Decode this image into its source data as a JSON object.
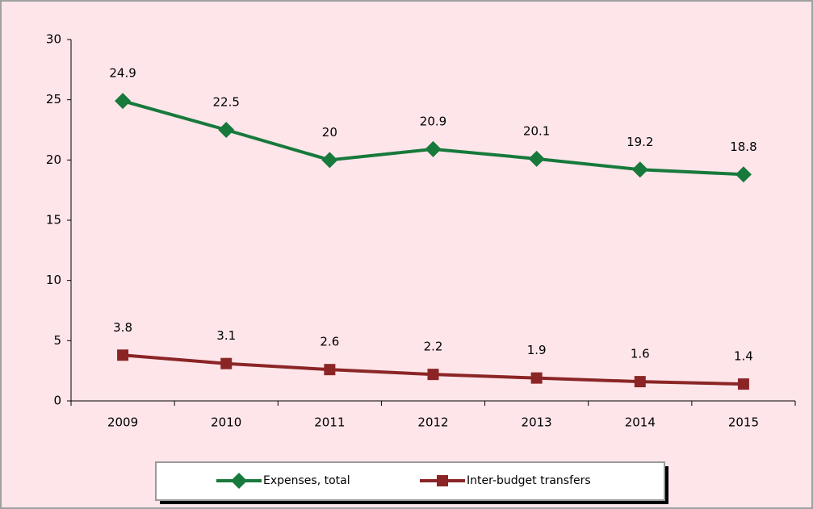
{
  "chart_data": {
    "type": "line",
    "categories": [
      "2009",
      "2010",
      "2011",
      "2012",
      "2013",
      "2014",
      "2015"
    ],
    "series": [
      {
        "name": "Expenses, total",
        "color": "#17793b",
        "marker": "diamond",
        "values": [
          24.9,
          22.5,
          20,
          20.9,
          20.1,
          19.2,
          18.8
        ]
      },
      {
        "name": "Inter-budget transfers",
        "color": "#8b2525",
        "marker": "square",
        "values": [
          3.8,
          3.1,
          2.6,
          2.2,
          1.9,
          1.6,
          1.4
        ]
      }
    ],
    "ylim": [
      0,
      30
    ],
    "yticks": [
      0,
      5,
      10,
      15,
      20,
      25,
      30
    ],
    "legend": "bottom",
    "data_labels": true
  }
}
